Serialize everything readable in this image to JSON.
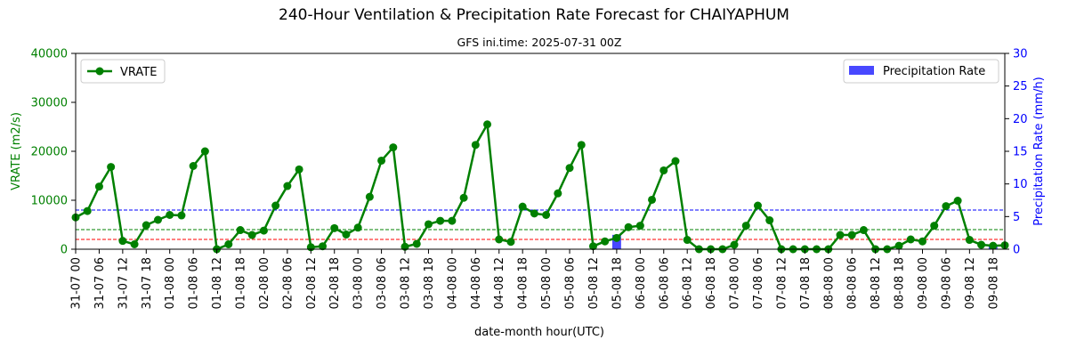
{
  "chart_data": {
    "type": "line",
    "title": "240-Hour Ventilation & Precipitation Rate Forecast for CHAIYAPHUM",
    "subtitle": "GFS ini.time: 2025-07-31 00Z",
    "xlabel": "date-month hour(UTC)",
    "ylabel_left": "VRATE (m2/s)",
    "ylabel_right": "Precipitation Rate (mm/h)",
    "ylim_left": [
      0,
      40000
    ],
    "ylim_right": [
      0,
      30
    ],
    "yticks_left": [
      "0",
      "10000",
      "20000",
      "30000",
      "40000"
    ],
    "yticks_right": [
      "0",
      "5",
      "10",
      "15",
      "20",
      "25",
      "30"
    ],
    "x_labels": [
      "31-07 00",
      "31-07 06",
      "31-07 12",
      "31-07 18",
      "01-08 00",
      "01-08 06",
      "01-08 12",
      "01-08 18",
      "02-08 00",
      "02-08 06",
      "02-08 12",
      "02-08 18",
      "03-08 00",
      "03-08 06",
      "03-08 12",
      "03-08 18",
      "04-08 00",
      "04-08 06",
      "04-08 12",
      "04-08 18",
      "05-08 00",
      "05-08 06",
      "05-08 12",
      "05-08 18",
      "06-08 00",
      "06-08 06",
      "06-08 12",
      "06-08 18",
      "07-08 00",
      "07-08 06",
      "07-08 12",
      "07-08 18",
      "08-08 00",
      "08-08 06",
      "08-08 12",
      "08-08 18",
      "09-08 00",
      "09-08 06",
      "09-08 12",
      "09-08 18"
    ],
    "series": [
      {
        "name": "VRATE",
        "axis": "left",
        "color": "#008000",
        "values": [
          6500,
          7800,
          12800,
          16800,
          1700,
          1000,
          4900,
          6000,
          7000,
          6900,
          17000,
          20000,
          0,
          1000,
          3900,
          2900,
          3800,
          8900,
          12900,
          16300,
          400,
          600,
          4300,
          3000,
          4400,
          10700,
          18100,
          20800,
          500,
          1100,
          5100,
          5800,
          5800,
          10500,
          21300,
          25500,
          2000,
          1500,
          8700,
          7300,
          7000,
          11400,
          16600,
          21300,
          600,
          1600,
          2300,
          4500,
          4800,
          10100,
          16100,
          18000,
          1900,
          0,
          0,
          0,
          900,
          4800,
          8900,
          5900,
          0,
          0,
          0,
          0,
          0,
          2900,
          2900,
          3900,
          0,
          0,
          700,
          2000,
          1600,
          4800,
          8800,
          9900,
          1900,
          900,
          700,
          800
        ]
      },
      {
        "name": "Precipitation Rate",
        "axis": "right",
        "color": "#4848ff",
        "bars": [
          {
            "index": 46,
            "value": 2.2
          },
          {
            "index": 78,
            "value": 0.4
          }
        ]
      }
    ],
    "reference_lines": [
      {
        "value": 8000,
        "color": "#0000ff"
      },
      {
        "value": 4000,
        "color": "#008000"
      },
      {
        "value": 2000,
        "color": "#ff0000"
      }
    ],
    "legend_left": {
      "label": "VRATE",
      "position": "top-left"
    },
    "legend_right": {
      "label": "Precipitation Rate",
      "position": "top-right"
    },
    "grid": false
  }
}
